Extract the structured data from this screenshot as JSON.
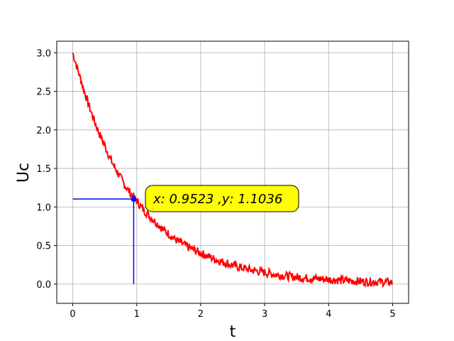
{
  "chart_data": {
    "type": "line",
    "title": "",
    "xlabel": "t",
    "ylabel": "Uc",
    "xlim": [
      -0.25,
      5.25
    ],
    "ylim": [
      -0.25,
      3.15
    ],
    "xticks": [
      0,
      1,
      2,
      3,
      4,
      5
    ],
    "yticks": [
      0.0,
      0.5,
      1.0,
      1.5,
      2.0,
      2.5,
      3.0
    ],
    "xtick_labels": [
      "0",
      "1",
      "2",
      "3",
      "4",
      "5"
    ],
    "ytick_labels": [
      "0.0",
      "0.5",
      "1.0",
      "1.5",
      "2.0",
      "2.5",
      "3.0"
    ],
    "grid": true,
    "series": [
      {
        "color": "#ff0000",
        "x": [
          0,
          0.1,
          0.2,
          0.3,
          0.4,
          0.5,
          0.6,
          0.7,
          0.8,
          0.9,
          1.0,
          1.1,
          1.2,
          1.3,
          1.4,
          1.5,
          1.6,
          1.7,
          1.8,
          1.9,
          2.0,
          2.2,
          2.4,
          2.6,
          2.8,
          3.0,
          3.2,
          3.4,
          3.6,
          3.8,
          4.0,
          4.2,
          4.4,
          4.6,
          4.8,
          5.0
        ],
        "y": [
          3.0,
          2.72,
          2.45,
          2.2,
          1.98,
          1.8,
          1.6,
          1.45,
          1.3,
          1.18,
          1.08,
          0.97,
          0.88,
          0.8,
          0.72,
          0.65,
          0.58,
          0.53,
          0.48,
          0.44,
          0.4,
          0.33,
          0.27,
          0.22,
          0.18,
          0.15,
          0.12,
          0.1,
          0.08,
          0.07,
          0.06,
          0.05,
          0.04,
          0.03,
          0.03,
          0.02
        ]
      }
    ],
    "marker": {
      "x": 0.9523,
      "y": 1.1036,
      "color": "#0000ff",
      "label": "x: 0.9523 ,y: 1.1036",
      "box_color": "#ffff00"
    }
  }
}
